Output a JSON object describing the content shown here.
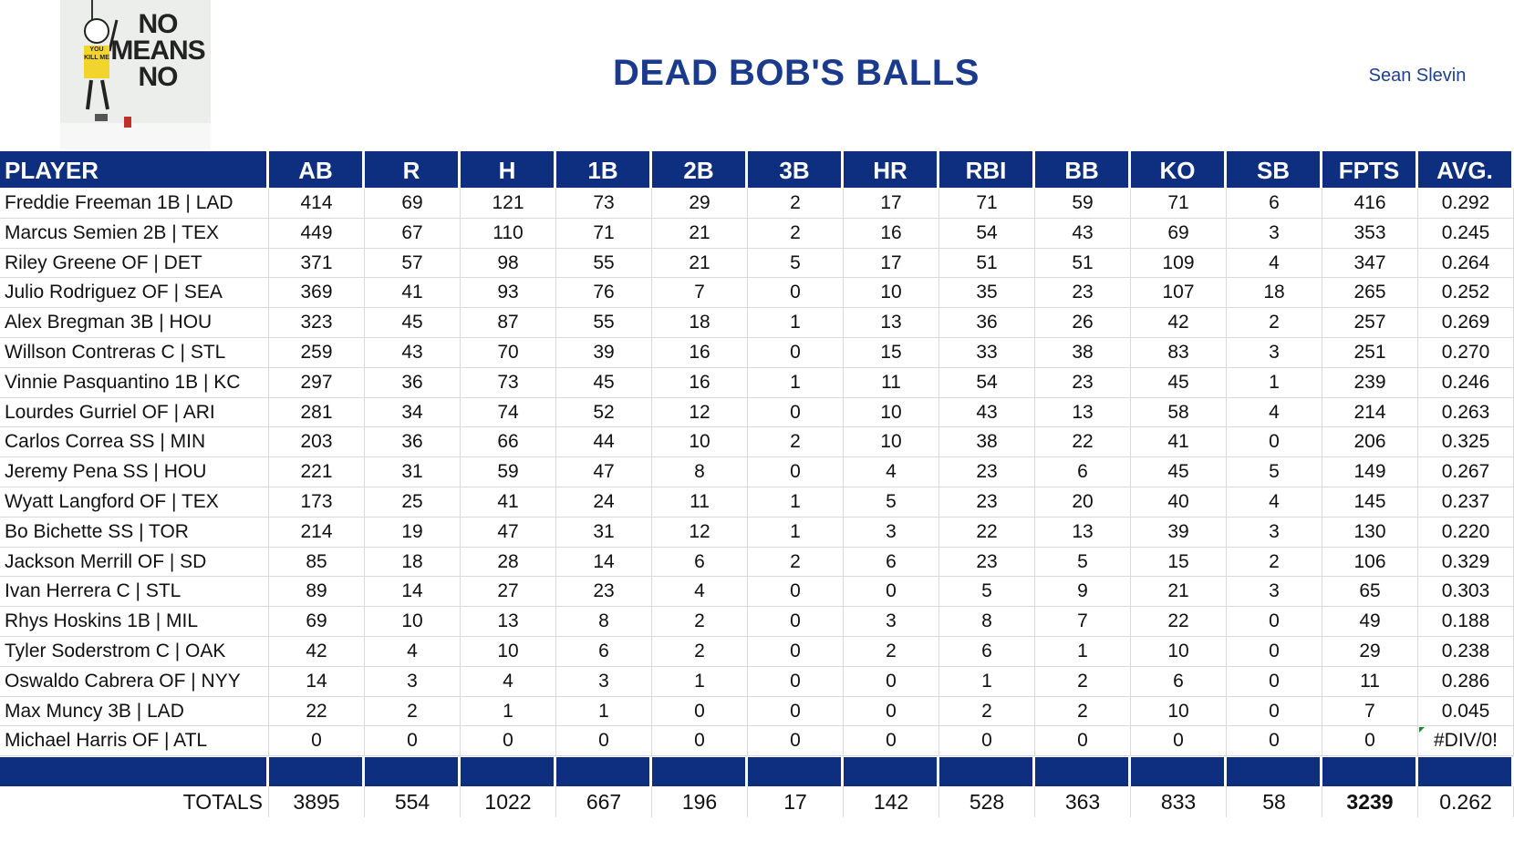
{
  "header": {
    "title": "DEAD BOB'S BALLS",
    "owner": "Sean Slevin",
    "logo": {
      "lines": [
        "NO",
        "MEANS",
        "NO"
      ],
      "shirt": "YOU KILL ME"
    }
  },
  "table": {
    "columns": [
      "PLAYER",
      "AB",
      "R",
      "H",
      "1B",
      "2B",
      "3B",
      "HR",
      "RBI",
      "BB",
      "KO",
      "SB",
      "FPTS",
      "AVG."
    ],
    "rows": [
      [
        "Freddie Freeman 1B | LAD",
        "414",
        "69",
        "121",
        "73",
        "29",
        "2",
        "17",
        "71",
        "59",
        "71",
        "6",
        "416",
        "0.292"
      ],
      [
        "Marcus Semien 2B | TEX",
        "449",
        "67",
        "110",
        "71",
        "21",
        "2",
        "16",
        "54",
        "43",
        "69",
        "3",
        "353",
        "0.245"
      ],
      [
        "Riley Greene OF | DET",
        "371",
        "57",
        "98",
        "55",
        "21",
        "5",
        "17",
        "51",
        "51",
        "109",
        "4",
        "347",
        "0.264"
      ],
      [
        "Julio Rodriguez OF | SEA",
        "369",
        "41",
        "93",
        "76",
        "7",
        "0",
        "10",
        "35",
        "23",
        "107",
        "18",
        "265",
        "0.252"
      ],
      [
        "Alex Bregman 3B | HOU",
        "323",
        "45",
        "87",
        "55",
        "18",
        "1",
        "13",
        "36",
        "26",
        "42",
        "2",
        "257",
        "0.269"
      ],
      [
        "Willson Contreras C | STL",
        "259",
        "43",
        "70",
        "39",
        "16",
        "0",
        "15",
        "33",
        "38",
        "83",
        "3",
        "251",
        "0.270"
      ],
      [
        "Vinnie Pasquantino 1B | KC",
        "297",
        "36",
        "73",
        "45",
        "16",
        "1",
        "11",
        "54",
        "23",
        "45",
        "1",
        "239",
        "0.246"
      ],
      [
        "Lourdes Gurriel OF | ARI",
        "281",
        "34",
        "74",
        "52",
        "12",
        "0",
        "10",
        "43",
        "13",
        "58",
        "4",
        "214",
        "0.263"
      ],
      [
        "Carlos Correa SS | MIN",
        "203",
        "36",
        "66",
        "44",
        "10",
        "2",
        "10",
        "38",
        "22",
        "41",
        "0",
        "206",
        "0.325"
      ],
      [
        "Jeremy Pena SS | HOU",
        "221",
        "31",
        "59",
        "47",
        "8",
        "0",
        "4",
        "23",
        "6",
        "45",
        "5",
        "149",
        "0.267"
      ],
      [
        "Wyatt Langford OF | TEX",
        "173",
        "25",
        "41",
        "24",
        "11",
        "1",
        "5",
        "23",
        "20",
        "40",
        "4",
        "145",
        "0.237"
      ],
      [
        "Bo Bichette SS | TOR",
        "214",
        "19",
        "47",
        "31",
        "12",
        "1",
        "3",
        "22",
        "13",
        "39",
        "3",
        "130",
        "0.220"
      ],
      [
        "Jackson Merrill OF | SD",
        "85",
        "18",
        "28",
        "14",
        "6",
        "2",
        "6",
        "23",
        "5",
        "15",
        "2",
        "106",
        "0.329"
      ],
      [
        "Ivan Herrera C | STL",
        "89",
        "14",
        "27",
        "23",
        "4",
        "0",
        "0",
        "5",
        "9",
        "21",
        "3",
        "65",
        "0.303"
      ],
      [
        "Rhys Hoskins 1B | MIL",
        "69",
        "10",
        "13",
        "8",
        "2",
        "0",
        "3",
        "8",
        "7",
        "22",
        "0",
        "49",
        "0.188"
      ],
      [
        "Tyler Soderstrom C | OAK",
        "42",
        "4",
        "10",
        "6",
        "2",
        "0",
        "2",
        "6",
        "1",
        "10",
        "0",
        "29",
        "0.238"
      ],
      [
        "Oswaldo Cabrera OF | NYY",
        "14",
        "3",
        "4",
        "3",
        "1",
        "0",
        "0",
        "1",
        "2",
        "6",
        "0",
        "11",
        "0.286"
      ],
      [
        "Max Muncy 3B | LAD",
        "22",
        "2",
        "1",
        "1",
        "0",
        "0",
        "0",
        "2",
        "2",
        "10",
        "0",
        "7",
        "0.045"
      ],
      [
        "Michael Harris OF | ATL",
        "0",
        "0",
        "0",
        "0",
        "0",
        "0",
        "0",
        "0",
        "0",
        "0",
        "0",
        "0",
        "#DIV/0!"
      ]
    ],
    "totals": [
      "TOTALS",
      "3895",
      "554",
      "1022",
      "667",
      "196",
      "17",
      "142",
      "528",
      "363",
      "833",
      "58",
      "3239",
      "0.262"
    ]
  }
}
